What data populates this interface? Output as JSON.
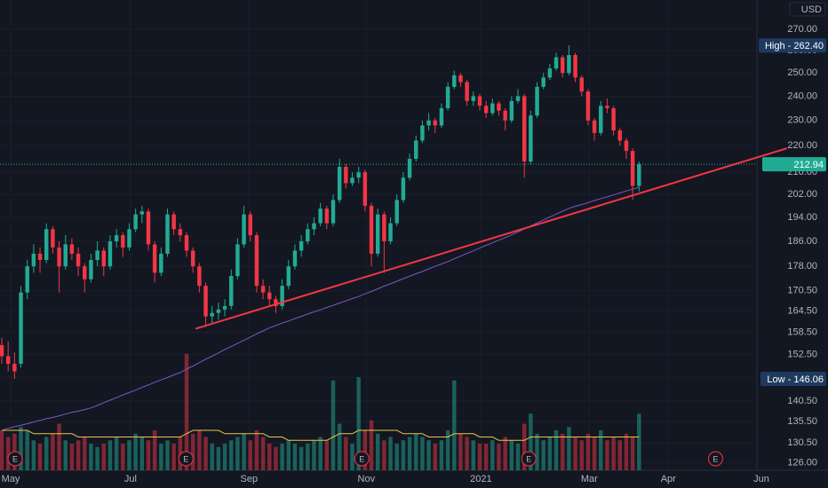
{
  "chart_data": {
    "type": "candlestick",
    "currency": "USD",
    "log_scale": true,
    "grid": true,
    "colors": {
      "up": "#22ab94",
      "down": "#f23645",
      "ma": "#7e57c2",
      "volume_ma": "#e8c547",
      "trendline": "#f23645",
      "high_low": "#1e3a5f",
      "last": "#22ab94"
    },
    "ylim": [
      124.4,
      284.2
    ],
    "yticks": [
      {
        "value": 270,
        "label": "270.00"
      },
      {
        "value": 260,
        "label": "260.00"
      },
      {
        "value": 250,
        "label": "250.00"
      },
      {
        "value": 240,
        "label": "240.00"
      },
      {
        "value": 230,
        "label": "230.00"
      },
      {
        "value": 220,
        "label": "220.00"
      },
      {
        "value": 210,
        "label": "210.00"
      },
      {
        "value": 202,
        "label": "202.00"
      },
      {
        "value": 194,
        "label": "194.00"
      },
      {
        "value": 186,
        "label": "186.00"
      },
      {
        "value": 178,
        "label": "178.00"
      },
      {
        "value": 170.5,
        "label": "170.50"
      },
      {
        "value": 164.5,
        "label": "164.50"
      },
      {
        "value": 158.5,
        "label": "158.50"
      },
      {
        "value": 152.5,
        "label": "152.50"
      },
      {
        "value": 146.5,
        "label": "146.50"
      },
      {
        "value": 140.5,
        "label": "140.50"
      },
      {
        "value": 135.5,
        "label": "135.50"
      },
      {
        "value": 130.5,
        "label": "130.50"
      },
      {
        "value": 126,
        "label": "126.00"
      }
    ],
    "xlim": [
      -0.28,
      118.5
    ],
    "xticks": [
      {
        "value": 1.4,
        "label": "May"
      },
      {
        "value": 20.2,
        "label": "Jul"
      },
      {
        "value": 38.8,
        "label": "Sep"
      },
      {
        "value": 57.2,
        "label": "Nov"
      },
      {
        "value": 75.2,
        "label": "2021"
      },
      {
        "value": 92.2,
        "label": "Mar"
      },
      {
        "value": 104.6,
        "label": "Apr"
      },
      {
        "value": 119.2,
        "label": "Jun"
      }
    ],
    "high": {
      "value": 262.4,
      "label": "High - 262.40"
    },
    "low": {
      "value": 146.06,
      "label": "Low - 146.06"
    },
    "last": {
      "value": 212.94,
      "label": "212.94"
    },
    "ohlc": [
      [
        155,
        157,
        150,
        152
      ],
      [
        152,
        156,
        148,
        150
      ],
      [
        150,
        153,
        146.06,
        148
      ],
      [
        150,
        172,
        149,
        170
      ],
      [
        170,
        180,
        168,
        178
      ],
      [
        178,
        185,
        176,
        182
      ],
      [
        182,
        184,
        176,
        180
      ],
      [
        180,
        192,
        179,
        190
      ],
      [
        190,
        191,
        182,
        184
      ],
      [
        184,
        186,
        170,
        178
      ],
      [
        178,
        188,
        177,
        185
      ],
      [
        185,
        187,
        180,
        182
      ],
      [
        182,
        184,
        175,
        178
      ],
      [
        178,
        179,
        170,
        174
      ],
      [
        174,
        182,
        173,
        180
      ],
      [
        180,
        186,
        178,
        183
      ],
      [
        183,
        184,
        175,
        178
      ],
      [
        178,
        188,
        177,
        186
      ],
      [
        186,
        190,
        184,
        188
      ],
      [
        188,
        189,
        181,
        184
      ],
      [
        184,
        192,
        183,
        190
      ],
      [
        190,
        197,
        189,
        195
      ],
      [
        195,
        198,
        192,
        196
      ],
      [
        196,
        197,
        183,
        185
      ],
      [
        185,
        186,
        173,
        176
      ],
      [
        176,
        184,
        175,
        182
      ],
      [
        182,
        197,
        181,
        195
      ],
      [
        195,
        196,
        188,
        190
      ],
      [
        190,
        192,
        186,
        188
      ],
      [
        188,
        189,
        181,
        183
      ],
      [
        183,
        184,
        176,
        178
      ],
      [
        178,
        179,
        170,
        172
      ],
      [
        172,
        173,
        160,
        163
      ],
      [
        163,
        166,
        161,
        164
      ],
      [
        164,
        167,
        162,
        165
      ],
      [
        165,
        168,
        163,
        166
      ],
      [
        166,
        177,
        165,
        175
      ],
      [
        175,
        187,
        174,
        185
      ],
      [
        185,
        198,
        184,
        195
      ],
      [
        195,
        196,
        186,
        188
      ],
      [
        188,
        189,
        170,
        172
      ],
      [
        172,
        174,
        168,
        170
      ],
      [
        170,
        172,
        166,
        168
      ],
      [
        168,
        169,
        164,
        166
      ],
      [
        166,
        174,
        165,
        172
      ],
      [
        172,
        180,
        171,
        178
      ],
      [
        178,
        185,
        177,
        183
      ],
      [
        183,
        188,
        181,
        186
      ],
      [
        186,
        192,
        185,
        190
      ],
      [
        190,
        194,
        188,
        192
      ],
      [
        192,
        199,
        191,
        197
      ],
      [
        197,
        198,
        190,
        192
      ],
      [
        192,
        202,
        191,
        200
      ],
      [
        200,
        215,
        199,
        212
      ],
      [
        212,
        213,
        204,
        206
      ],
      [
        206,
        210,
        205,
        208
      ],
      [
        208,
        212,
        206,
        210
      ],
      [
        210,
        211,
        196,
        198
      ],
      [
        198,
        199,
        178,
        182
      ],
      [
        182,
        197,
        181,
        195
      ],
      [
        195,
        196,
        176,
        186
      ],
      [
        186,
        194,
        185,
        192
      ],
      [
        192,
        202,
        191,
        200
      ],
      [
        200,
        210,
        199,
        208
      ],
      [
        208,
        217,
        207,
        215
      ],
      [
        215,
        224,
        214,
        222
      ],
      [
        222,
        230,
        221,
        228
      ],
      [
        228,
        233,
        226,
        230
      ],
      [
        230,
        231,
        225,
        228
      ],
      [
        228,
        237,
        227,
        235
      ],
      [
        235,
        246,
        234,
        244
      ],
      [
        244,
        251,
        243,
        249
      ],
      [
        249,
        250,
        244,
        246
      ],
      [
        246,
        247,
        236,
        238
      ],
      [
        238,
        242,
        236,
        240
      ],
      [
        240,
        241,
        234,
        236
      ],
      [
        236,
        238,
        231,
        233
      ],
      [
        233,
        239,
        232,
        237
      ],
      [
        237,
        238,
        232,
        234
      ],
      [
        234,
        235,
        226,
        230
      ],
      [
        230,
        240,
        229,
        238
      ],
      [
        238,
        243,
        237,
        240
      ],
      [
        240,
        241,
        208,
        214
      ],
      [
        214,
        234,
        213,
        232
      ],
      [
        232,
        246,
        231,
        244
      ],
      [
        244,
        250,
        243,
        248
      ],
      [
        248,
        254,
        247,
        252
      ],
      [
        252,
        259,
        251,
        257
      ],
      [
        257,
        258,
        248,
        250
      ],
      [
        250,
        262.4,
        249,
        258
      ],
      [
        258,
        259,
        246,
        248
      ],
      [
        248,
        249,
        240,
        242
      ],
      [
        242,
        243,
        228,
        230
      ],
      [
        230,
        231,
        222,
        225
      ],
      [
        225,
        238,
        224,
        236
      ],
      [
        236,
        239,
        233,
        235
      ],
      [
        235,
        236,
        224,
        226
      ],
      [
        226,
        227,
        220,
        222
      ],
      [
        222,
        223,
        215,
        218
      ],
      [
        218,
        219,
        200,
        205
      ],
      [
        205,
        214,
        203,
        212.94
      ]
    ],
    "ma": [
      133.5,
      133.9,
      134.3,
      134.6,
      135.0,
      135.4,
      135.8,
      136.2,
      136.5,
      136.9,
      137.3,
      137.7,
      138.0,
      138.4,
      138.8,
      139.4,
      140.1,
      140.7,
      141.3,
      142.0,
      142.6,
      143.2,
      143.9,
      144.5,
      145.2,
      145.8,
      146.4,
      147.1,
      147.7,
      148.6,
      149.4,
      150.3,
      151.2,
      152.0,
      152.9,
      153.8,
      154.6,
      155.5,
      156.3,
      157.2,
      158.1,
      158.9,
      159.8,
      160.4,
      161.1,
      161.7,
      162.4,
      163.0,
      163.7,
      164.3,
      164.9,
      165.6,
      166.2,
      166.9,
      167.5,
      168.2,
      168.8,
      169.6,
      170.3,
      171.1,
      171.9,
      172.6,
      173.4,
      174.2,
      174.9,
      175.7,
      176.4,
      177.2,
      178.0,
      178.7,
      179.5,
      180.4,
      181.2,
      182.1,
      182.9,
      183.8,
      184.7,
      185.5,
      186.4,
      187.2,
      188.1,
      189.1,
      190.1,
      191.1,
      192.1,
      193.1,
      194.1,
      195.1,
      196.1,
      197.1,
      197.8,
      198.4,
      199.1,
      199.8,
      200.5,
      201.1,
      201.8,
      202.5,
      203.2,
      203.8,
      204.5
    ],
    "volume_lim": [
      0,
      40
    ],
    "volume": [
      12,
      10,
      11,
      13,
      12,
      9,
      8,
      10,
      11,
      14,
      9,
      8,
      9,
      10,
      8,
      7,
      8,
      9,
      10,
      8,
      9,
      11,
      10,
      9,
      12,
      8,
      9,
      8,
      10,
      35,
      11,
      12,
      10,
      8,
      7,
      8,
      9,
      10,
      11,
      9,
      12,
      10,
      8,
      7,
      8,
      9,
      8,
      7,
      8,
      9,
      10,
      9,
      27,
      14,
      10,
      8,
      28,
      12,
      15,
      11,
      9,
      10,
      8,
      9,
      10,
      11,
      10,
      9,
      8,
      9,
      12,
      27,
      11,
      10,
      9,
      8,
      8,
      9,
      8,
      10,
      9,
      8,
      14,
      17,
      11,
      9,
      10,
      12,
      11,
      13,
      10,
      9,
      11,
      10,
      12,
      9,
      10,
      9,
      11,
      10,
      17
    ],
    "volume_ma": [
      12,
      12,
      12,
      12,
      12,
      11,
      11,
      11,
      11,
      11,
      11,
      11,
      10,
      10,
      10,
      10,
      10,
      10,
      10,
      10,
      10,
      10,
      10,
      10,
      10,
      10,
      10,
      10,
      10,
      11,
      12,
      12,
      12,
      12,
      12,
      11,
      11,
      11,
      11,
      11,
      11,
      11,
      10,
      10,
      10,
      9,
      9,
      9,
      9,
      9,
      9,
      9,
      10,
      11,
      11,
      11,
      12,
      12,
      12,
      12,
      12,
      12,
      12,
      11,
      11,
      11,
      11,
      10,
      10,
      10,
      10,
      11,
      11,
      11,
      11,
      10,
      10,
      10,
      9,
      9,
      9,
      9,
      9,
      10,
      10,
      10,
      10,
      10,
      10,
      10,
      10,
      10,
      10,
      10,
      10,
      10,
      10,
      10,
      10,
      10,
      10
    ],
    "trendline": {
      "start": [
        30.4,
        159.5
      ],
      "end": [
        123.2,
        219
      ]
    },
    "earnings": [
      {
        "x": 2.09,
        "label": "E"
      },
      {
        "x": 28.9,
        "label": "E"
      },
      {
        "x": 56.5,
        "label": "E"
      },
      {
        "x": 82.7,
        "label": "E"
      },
      {
        "x": 112.0,
        "label": "E"
      }
    ]
  }
}
